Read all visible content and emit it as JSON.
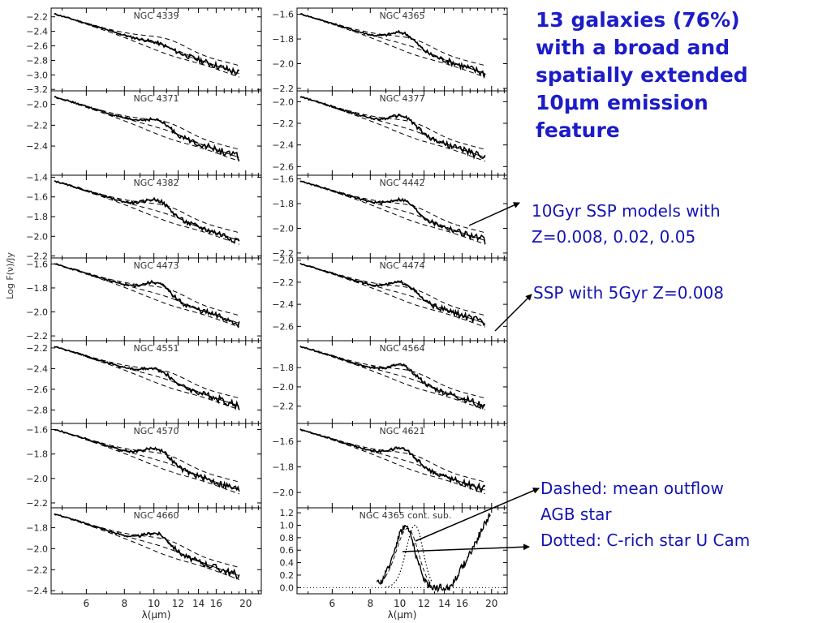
{
  "headline": [
    "13 galaxies (76%)",
    "with a broad and",
    "spatially extended",
    "10μm emission",
    "feature"
  ],
  "notes": {
    "ssp_models": [
      "10Gyr SSP models with",
      "Z=0.008, 0.02, 0.05"
    ],
    "ssp_5gyr": "SSP with 5Gyr Z=0.008",
    "legend_notes": [
      "Dashed: mean outflow",
      "AGB star",
      "Dotted: C-rich star U Cam"
    ]
  },
  "colors": {
    "headline": "#1c1cc8",
    "notes": "#1414b4",
    "ink": "#000000"
  },
  "chart_data": {
    "type": "line",
    "shared_ylabel": "Log F(ν)/Jy",
    "xlabel": "λ(μm)",
    "x_scale": "log",
    "xlim": [
      4.6,
      22.5
    ],
    "x_ticks": [
      "6",
      "8",
      "10",
      "12",
      "14",
      "16",
      "20"
    ],
    "line_styles": {
      "solid": "observed spectrum",
      "dashed": "10Gyr SSP models with Z=0.008, 0.02, 0.05",
      "thin_solid": "SSP with 5Gyr Z=0.008",
      "dotted": "C-rich star U Cam"
    },
    "panels": [
      {
        "label": "NGC 4339",
        "ylim": [
          -3.22,
          -2.08
        ],
        "yticks": [
          "-2.2",
          "-2.4",
          "-2.6",
          "-2.8",
          "-3.0",
          "-3.2"
        ]
      },
      {
        "label": "NGC 4365",
        "ylim": [
          -2.22,
          -1.55
        ],
        "yticks": [
          "-1.6",
          "-1.8",
          "-2.0",
          "-2.2"
        ]
      },
      {
        "label": "NGC 4371",
        "ylim": [
          -2.68,
          -1.87
        ],
        "yticks": [
          "-2.0",
          "-2.2",
          "-2.4"
        ]
      },
      {
        "label": "NGC 4377",
        "ylim": [
          -2.68,
          -1.9
        ],
        "yticks": [
          "-2.0",
          "-2.2",
          "-2.4",
          "-2.6"
        ]
      },
      {
        "label": "NGC 4382",
        "ylim": [
          -2.22,
          -1.38
        ],
        "yticks": [
          "-1.4",
          "-1.6",
          "-1.8",
          "-2.0",
          "-2.2"
        ]
      },
      {
        "label": "NGC 4442",
        "ylim": [
          -2.24,
          -1.57
        ],
        "yticks": [
          "-1.6",
          "-1.8",
          "-2.0",
          "-2.2"
        ]
      },
      {
        "label": "NGC 4473",
        "ylim": [
          -2.24,
          -1.55
        ],
        "yticks": [
          "-1.6",
          "-1.8",
          "-2.0",
          "-2.2"
        ]
      },
      {
        "label": "NGC 4474",
        "ylim": [
          -2.73,
          -1.98
        ],
        "yticks": [
          "-2.0",
          "-2.2",
          "-2.4",
          "-2.6"
        ]
      },
      {
        "label": "NGC 4551",
        "ylim": [
          -2.93,
          -2.13
        ],
        "yticks": [
          "-2.2",
          "-2.4",
          "-2.6",
          "-2.8"
        ]
      },
      {
        "label": "NGC 4564",
        "ylim": [
          -2.38,
          -1.52
        ],
        "yticks": [
          "-1.8",
          "-2.0",
          "-2.2"
        ]
      },
      {
        "label": "NGC 4570",
        "ylim": [
          -2.24,
          -1.55
        ],
        "yticks": [
          "-1.6",
          "-1.8",
          "-2.0",
          "-2.2"
        ]
      },
      {
        "label": "NGC 4621",
        "ylim": [
          -2.12,
          -1.46
        ],
        "yticks": [
          "-1.6",
          "-1.8",
          "-2.0"
        ]
      },
      {
        "label": "NGC 4660",
        "ylim": [
          -2.43,
          -1.61
        ],
        "yticks": [
          "-1.8",
          "-2.0",
          "-2.2",
          "-2.4"
        ]
      },
      {
        "label": "NGC 4365 cont. sub.",
        "ylim": [
          -0.1,
          1.28
        ],
        "yticks": [
          "1.2",
          "1.0",
          "0.8",
          "0.6",
          "0.4",
          "0.2",
          "0.0"
        ]
      }
    ]
  }
}
